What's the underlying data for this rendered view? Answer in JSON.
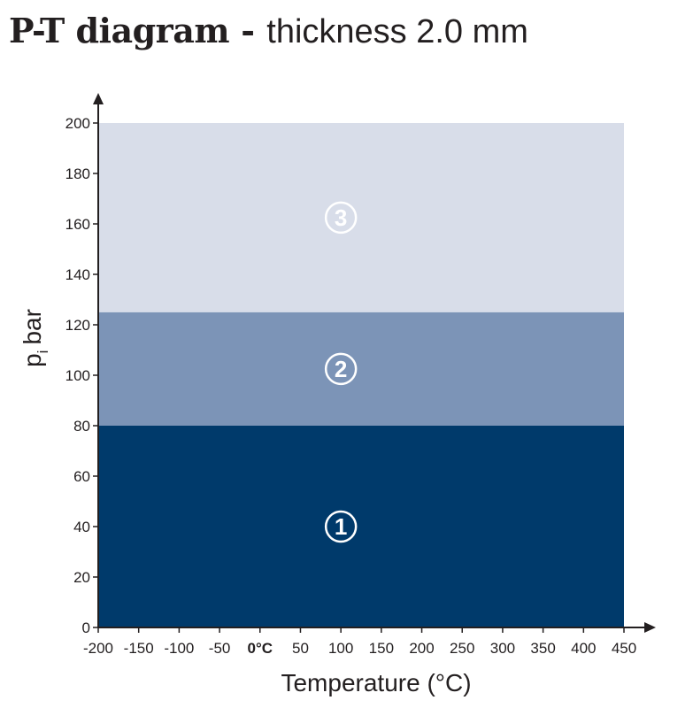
{
  "title": {
    "bold": "P-T diagram",
    "separator": " - ",
    "rest": "thickness 2.0 mm"
  },
  "chart_data": {
    "type": "area",
    "xlabel": "Temperature (°C)",
    "ylabel": "p",
    "ylabel_subscript": "i",
    "ylabel_unit": "bar",
    "xlim": [
      -200,
      450
    ],
    "ylim": [
      0,
      200
    ],
    "x_ticks": [
      {
        "value": -200,
        "label": "-200"
      },
      {
        "value": -150,
        "label": "-150"
      },
      {
        "value": -100,
        "label": "-100"
      },
      {
        "value": -50,
        "label": "-50"
      },
      {
        "value": 0,
        "label": "0°C",
        "bold": true
      },
      {
        "value": 50,
        "label": "50"
      },
      {
        "value": 100,
        "label": "100"
      },
      {
        "value": 150,
        "label": "150"
      },
      {
        "value": 200,
        "label": "200"
      },
      {
        "value": 250,
        "label": "250"
      },
      {
        "value": 300,
        "label": "300"
      },
      {
        "value": 350,
        "label": "350"
      },
      {
        "value": 400,
        "label": "400"
      },
      {
        "value": 450,
        "label": "450"
      }
    ],
    "y_ticks": [
      0,
      20,
      40,
      60,
      80,
      100,
      120,
      140,
      160,
      180,
      200
    ],
    "regions": [
      {
        "label": "1",
        "x_range": [
          -200,
          450
        ],
        "y_range": [
          0,
          80
        ],
        "color": "#003a6b"
      },
      {
        "label": "2",
        "x_range": [
          -200,
          450
        ],
        "y_range": [
          80,
          125
        ],
        "color": "#7c94b7"
      },
      {
        "label": "3",
        "x_range": [
          -200,
          450
        ],
        "y_range": [
          125,
          200
        ],
        "color": "#d8dde9"
      }
    ],
    "grid": false,
    "legend": "none"
  }
}
